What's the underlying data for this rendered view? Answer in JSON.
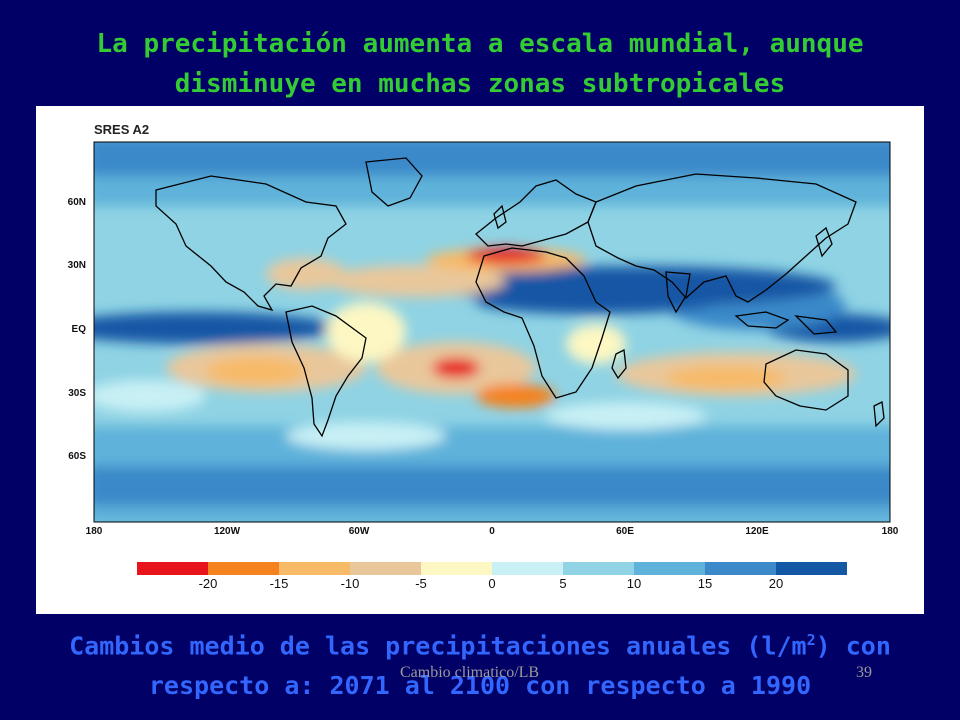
{
  "title": {
    "line1": "La precipitación aumenta a escala mundial, aunque",
    "line2": "disminuye en muchas zonas subtropicales"
  },
  "map": {
    "scenario": "SRES A2",
    "lat_labels": [
      "60N",
      "30N",
      "EQ",
      "30S",
      "60S"
    ],
    "lat_values": [
      60,
      30,
      0,
      -30,
      -60
    ],
    "lon_labels": [
      "180",
      "120W",
      "60W",
      "0",
      "60E",
      "120E",
      "180"
    ],
    "lon_values": [
      -180,
      -120,
      -60,
      0,
      60,
      120,
      180
    ],
    "lat_range": [
      -90,
      90
    ],
    "lon_range": [
      -180,
      180
    ],
    "colorbar": {
      "colors": [
        "#e8141c",
        "#f5821f",
        "#f7ba67",
        "#e9c79b",
        "#fdf7c3",
        "#c8f0f5",
        "#8fd3e4",
        "#5fb2da",
        "#3b89c9",
        "#1457a5"
      ],
      "tick_labels": [
        "-20",
        "-15",
        "-10",
        "-5",
        "0",
        "5",
        "10",
        "15",
        "20"
      ]
    }
  },
  "caption": {
    "line1_pre": "Cambios medio de las precipitaciones anuales (l/m",
    "line1_sup": "2",
    "line1_post": ") con",
    "line2": "respecto a:  2071 al 2100 con respecto a 1990"
  },
  "footer": {
    "text": "Cambio climatico/LB",
    "slide_number": "39"
  }
}
